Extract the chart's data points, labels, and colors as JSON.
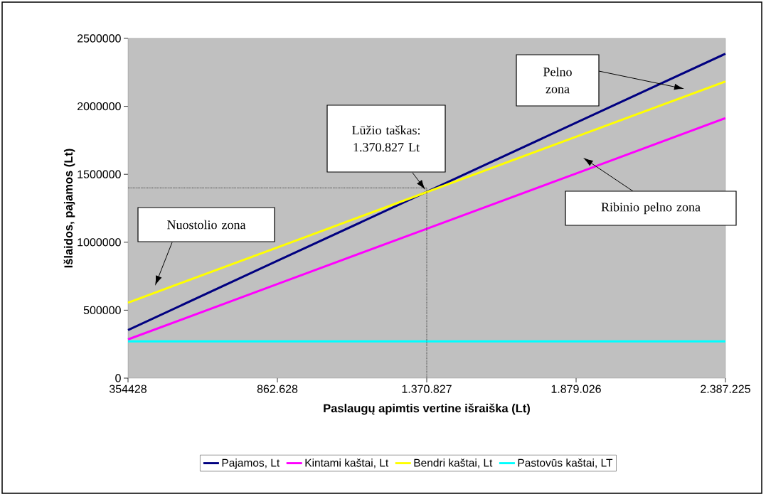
{
  "chart_data": {
    "type": "line",
    "xlabel": "Paslaugų apimtis vertine išraiška (Lt)",
    "ylabel": "Išlaidos, pajamos (Lt)",
    "categories": [
      "354428",
      "862.628",
      "1.370.827",
      "1.879.026",
      "2.387.225"
    ],
    "series": [
      {
        "name": "Pajamos, Lt",
        "color": "#000080",
        "values": [
          354000,
          863000,
          1371000,
          1879000,
          2387000
        ]
      },
      {
        "name": "Kintami kaštai, Lt",
        "color": "#ff00ff",
        "values": [
          285000,
          692000,
          1099000,
          1506000,
          1913000
        ]
      },
      {
        "name": "Bendri kaštai, Lt",
        "color": "#ffff00",
        "values": [
          555000,
          962000,
          1369000,
          1776000,
          2183000
        ]
      },
      {
        "name": "Pastovūs kaštai, LT",
        "color": "#00ffff",
        "values": [
          270000,
          270000,
          270000,
          270000,
          270000
        ]
      }
    ],
    "ylim": [
      0,
      2500000
    ],
    "yticks": [
      0,
      500000,
      1000000,
      1500000,
      2000000,
      2500000
    ],
    "legend": "bottom",
    "marker": "none",
    "line_style": "solid",
    "ref_lines": [
      {
        "axis": "y",
        "value": 1400000,
        "color": "#000000",
        "line_style": "dotted"
      },
      {
        "axis": "x",
        "value": "1.370.827",
        "color": "#000000",
        "line_style": "dotted"
      }
    ],
    "annotations": [
      "Lūžio taškas: 1.370.827 Lt",
      "Pelno zona",
      "Ribinio pelno zona",
      "Nuostolio zona"
    ]
  }
}
